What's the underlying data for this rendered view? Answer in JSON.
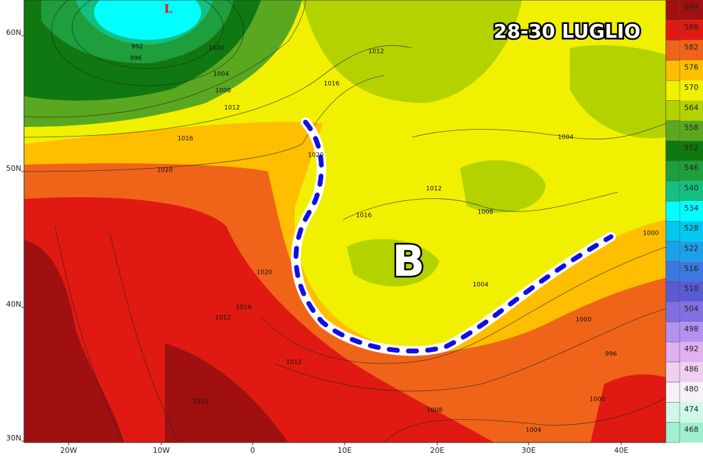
{
  "title": "28-30 LUGLIO",
  "low_label": "B",
  "high_label": "L",
  "lat_labels": [
    "60N",
    "50N",
    "40N",
    "30N"
  ],
  "lon_labels": [
    "20W",
    "10W",
    "0",
    "10E",
    "20E",
    "30E",
    "40E"
  ],
  "colorbar": [
    {
      "label": 594,
      "color": "#a01010"
    },
    {
      "label": 588,
      "color": "#e01a12"
    },
    {
      "label": 582,
      "color": "#f0641a"
    },
    {
      "label": 576,
      "color": "#ffbe00"
    },
    {
      "label": 570,
      "color": "#f0f000"
    },
    {
      "label": 564,
      "color": "#b4d200"
    },
    {
      "label": 558,
      "color": "#5aa820"
    },
    {
      "label": 552,
      "color": "#107810"
    },
    {
      "label": 546,
      "color": "#1e9e3c"
    },
    {
      "label": 540,
      "color": "#14c080"
    },
    {
      "label": 534,
      "color": "#00ffff"
    },
    {
      "label": 528,
      "color": "#00c8f0"
    },
    {
      "label": 522,
      "color": "#1ea0e8"
    },
    {
      "label": 516,
      "color": "#3c78e0"
    },
    {
      "label": 510,
      "color": "#5a5ad2"
    },
    {
      "label": 504,
      "color": "#8070e0"
    },
    {
      "label": 498,
      "color": "#b490f0"
    },
    {
      "label": 492,
      "color": "#e0b0f0"
    },
    {
      "label": 486,
      "color": "#f0d0f0"
    },
    {
      "label": 480,
      "color": "#f8f0f8"
    },
    {
      "label": 474,
      "color": "#d0f8e8"
    },
    {
      "label": 468,
      "color": "#a0f0d0"
    }
  ],
  "isobars": [
    992,
    996,
    1000,
    1004,
    1008,
    1012,
    1016,
    1020,
    1012,
    1016,
    1020,
    1012,
    1016,
    1008,
    1004,
    1000,
    1004,
    1020,
    1016,
    1012,
    1012,
    1012,
    1008,
    1004,
    1000,
    996,
    1000
  ]
}
